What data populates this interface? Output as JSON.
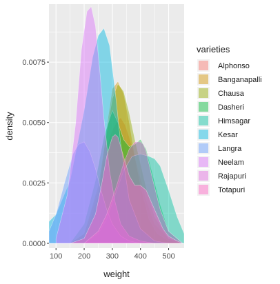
{
  "chart_data": {
    "type": "area",
    "subtype": "density",
    "xlabel": "weight",
    "ylabel": "density",
    "xlim": [
      75,
      555
    ],
    "ylim": [
      -0.0002,
      0.0099
    ],
    "x_ticks": [
      100,
      200,
      300,
      400,
      500
    ],
    "y_ticks": [
      0.0,
      0.0025,
      0.005,
      0.0075
    ],
    "y_tick_labels": [
      "0.0000",
      "0.0025",
      "0.0050",
      "0.0075"
    ],
    "grid": true,
    "legend_title": "varieties",
    "legend_position": "right",
    "fill_opacity": 0.45,
    "series": [
      {
        "name": "Alphonso",
        "color": "#F8766D",
        "x": [
          150,
          200,
          250,
          280,
          300,
          320,
          330,
          345,
          360,
          380,
          400,
          420,
          450,
          500,
          550
        ],
        "y": [
          0,
          0.0004,
          0.0022,
          0.004,
          0.0047,
          0.0051,
          0.0052,
          0.0049,
          0.0044,
          0.0036,
          0.0027,
          0.0018,
          0.0008,
          0.0002,
          0
        ]
      },
      {
        "name": "Banganapalli",
        "color": "#D39200",
        "x": [
          150,
          200,
          250,
          280,
          300,
          320,
          340,
          360,
          380,
          400,
          430,
          460,
          500,
          550
        ],
        "y": [
          0,
          0.0002,
          0.002,
          0.0048,
          0.0064,
          0.0067,
          0.0062,
          0.005,
          0.0036,
          0.0024,
          0.001,
          0.0004,
          0.0001,
          0
        ]
      },
      {
        "name": "Chausa",
        "color": "#93AA00",
        "x": [
          150,
          200,
          250,
          280,
          300,
          320,
          340,
          360,
          380,
          400,
          420,
          450,
          500,
          550
        ],
        "y": [
          0,
          0.0004,
          0.0024,
          0.0046,
          0.006,
          0.0066,
          0.0063,
          0.0054,
          0.0043,
          0.0033,
          0.0023,
          0.0011,
          0.0002,
          0
        ]
      },
      {
        "name": "Dasheri",
        "color": "#00BA38",
        "x": [
          150,
          200,
          240,
          270,
          300,
          320,
          340,
          360,
          380,
          400,
          420,
          440,
          470,
          500,
          550
        ],
        "y": [
          0,
          0.0008,
          0.0026,
          0.0044,
          0.0055,
          0.005,
          0.0043,
          0.004,
          0.0041,
          0.0043,
          0.0039,
          0.003,
          0.0016,
          0.0005,
          0
        ]
      },
      {
        "name": "Himsagar",
        "color": "#00C19F",
        "x": [
          200,
          250,
          280,
          310,
          340,
          370,
          400,
          430,
          450,
          470,
          500,
          530,
          555
        ],
        "y": [
          0,
          0.0004,
          0.001,
          0.002,
          0.003,
          0.0036,
          0.0037,
          0.0036,
          0.0035,
          0.0032,
          0.0022,
          0.0011,
          0.0004
        ]
      },
      {
        "name": "Kesar",
        "color": "#00B9E3",
        "x": [
          75,
          100,
          150,
          200,
          230,
          250,
          270,
          290,
          310,
          330,
          360,
          400,
          450,
          500
        ],
        "y": [
          0.0009,
          0.0012,
          0.0026,
          0.0055,
          0.0077,
          0.0086,
          0.0089,
          0.0082,
          0.0063,
          0.0041,
          0.0018,
          0.0006,
          0.0001,
          0
        ]
      },
      {
        "name": "Langra",
        "color": "#619CFF",
        "x": [
          75,
          100,
          130,
          160,
          180,
          200,
          220,
          240,
          260,
          280,
          300,
          330,
          360,
          400
        ],
        "y": [
          0.0005,
          0.0012,
          0.0025,
          0.0037,
          0.0041,
          0.0042,
          0.0038,
          0.0031,
          0.0022,
          0.0014,
          0.0008,
          0.0003,
          0.0001,
          0
        ]
      },
      {
        "name": "Neelam",
        "color": "#DB72FB",
        "x": [
          100,
          140,
          170,
          190,
          210,
          225,
          240,
          255,
          270,
          290,
          310,
          330,
          360,
          400,
          450
        ],
        "y": [
          0.0002,
          0.002,
          0.005,
          0.008,
          0.0096,
          0.0098,
          0.009,
          0.0072,
          0.0052,
          0.003,
          0.0017,
          0.0008,
          0.0003,
          0.0001,
          0
        ]
      },
      {
        "name": "Rajapuri",
        "color": "#E36BE0",
        "x": [
          200,
          250,
          280,
          310,
          340,
          360,
          380,
          400,
          410,
          420,
          440,
          470,
          500,
          550
        ],
        "y": [
          0,
          0.0005,
          0.0012,
          0.0022,
          0.0033,
          0.0039,
          0.0042,
          0.0042,
          0.0041,
          0.0038,
          0.0028,
          0.0014,
          0.0005,
          0
        ]
      },
      {
        "name": "Totapuri",
        "color": "#FF61C3",
        "x": [
          150,
          200,
          240,
          260,
          280,
          300,
          310,
          320,
          340,
          360,
          380,
          400,
          420,
          450,
          480,
          500,
          530,
          550
        ],
        "y": [
          0,
          0.0002,
          0.0012,
          0.0023,
          0.0036,
          0.0044,
          0.0045,
          0.0044,
          0.0036,
          0.0028,
          0.0024,
          0.0024,
          0.0022,
          0.0014,
          0.0006,
          0.0003,
          0.0001,
          0
        ]
      }
    ]
  }
}
